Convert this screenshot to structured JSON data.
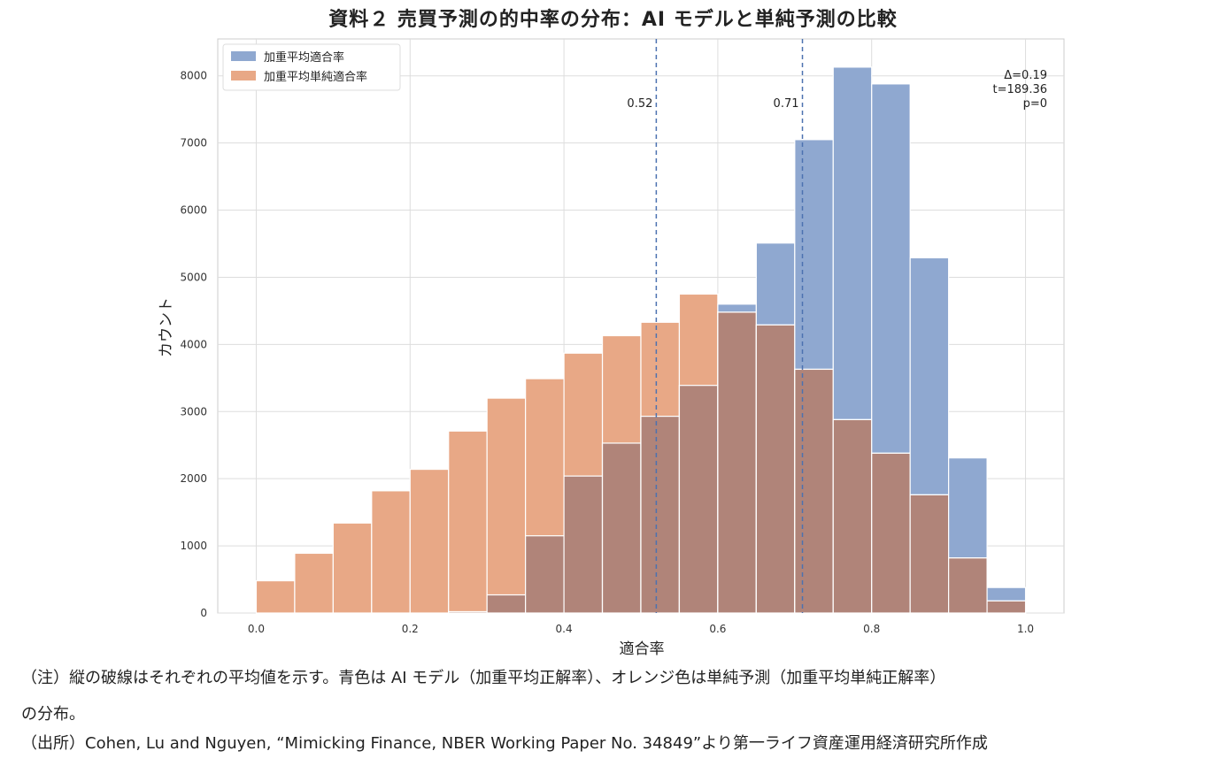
{
  "figure": {
    "title": "資料２ 売買予測の的中率の分布：AI モデルと単純予測の比較",
    "note_line1": "（注）縦の破線はそれぞれの平均値を示す。青色は AI モデル（加重平均正解率）、オレンジ色は単純予測（加重平均単純正解率）",
    "note_line2": "の分布。",
    "source": "（出所）Cohen, Lu and Nguyen, “Mimicking Finance, NBER Working Paper No. 34849”より第一ライフ資産運用経済研究所作成"
  },
  "chart_data": {
    "type": "histogram",
    "xlabel": "適合率",
    "ylabel": "カウント",
    "xlim": [
      -0.05,
      1.05
    ],
    "ylim": [
      0,
      8550
    ],
    "xticks": [
      0.0,
      0.2,
      0.4,
      0.6,
      0.8,
      1.0
    ],
    "xtick_labels": [
      "0.0",
      "0.2",
      "0.4",
      "0.6",
      "0.8",
      "1.0"
    ],
    "yticks": [
      0,
      1000,
      2000,
      3000,
      4000,
      5000,
      6000,
      7000,
      8000
    ],
    "ytick_labels": [
      "0",
      "1000",
      "2000",
      "3000",
      "4000",
      "5000",
      "6000",
      "7000",
      "8000"
    ],
    "grid": true,
    "legend_position": "top-left",
    "bin_edges": [
      0.0,
      0.05,
      0.1,
      0.15,
      0.2,
      0.25,
      0.3,
      0.35,
      0.4,
      0.45,
      0.5,
      0.55,
      0.6,
      0.65,
      0.7,
      0.75,
      0.8,
      0.85,
      0.9,
      0.95,
      1.0
    ],
    "series": [
      {
        "name": "加重平均適合率",
        "color": "#8fa8d0",
        "values": [
          0,
          0,
          0,
          0,
          0,
          20,
          270,
          1150,
          2040,
          2530,
          2930,
          3390,
          4600,
          5510,
          7050,
          8130,
          7880,
          5290,
          2310,
          380
        ]
      },
      {
        "name": "加重平均単純適合率",
        "color": "#e8a886",
        "values": [
          480,
          890,
          1340,
          1820,
          2140,
          2710,
          3200,
          3490,
          3870,
          4130,
          4330,
          4750,
          4480,
          4290,
          3630,
          2880,
          2380,
          1760,
          820,
          180
        ]
      }
    ],
    "overlap_color": "#b08479",
    "mean_lines": [
      {
        "x": 0.52,
        "label": "0.52"
      },
      {
        "x": 0.71,
        "label": "0.71"
      }
    ],
    "mean_line_color": "#4c72b0",
    "annotation": [
      "Δ=0.19",
      "t=189.36",
      "p=0"
    ]
  }
}
